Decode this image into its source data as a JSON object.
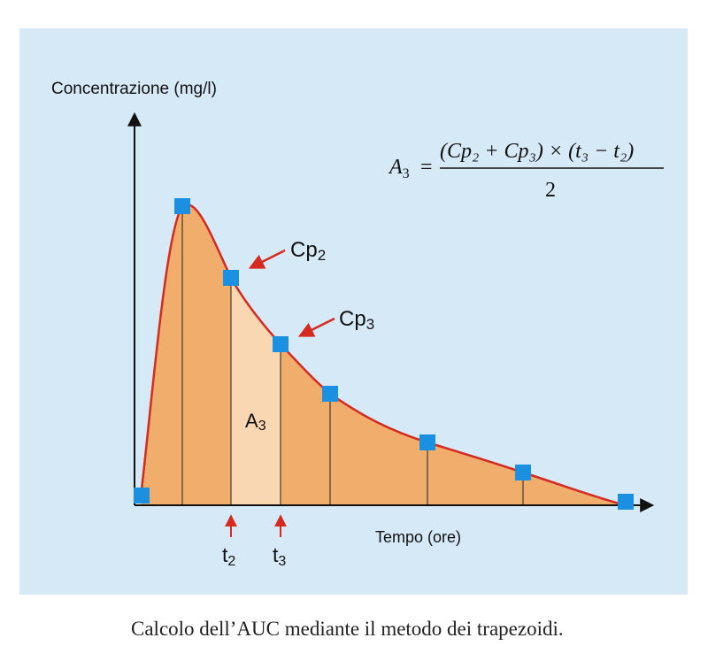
{
  "figure": {
    "y_axis_label": "Concentrazione (mg/l)",
    "x_axis_label": "Tempo (ore)",
    "formula": {
      "lhs": "A",
      "lhs_sub": "3",
      "equals": "=",
      "numerator": "(Cp₂ + Cp₃) × (t₃ − t₂)",
      "denominator": "2"
    },
    "labels": {
      "cp2": "Cp",
      "cp2_sub": "2",
      "cp3": "Cp",
      "cp3_sub": "3",
      "area": "A",
      "area_sub": "3",
      "t2": "t",
      "t2_sub": "2",
      "t3": "t",
      "t3_sub": "3"
    },
    "colors": {
      "background": "#d6e9f6",
      "area_fill": "#f0ad6c",
      "highlight_fill": "#f8d7b2",
      "curve": "#d42a1f",
      "marker": "#1b8fe0",
      "arrow": "#d42a1f"
    }
  },
  "caption": "Calcolo dell’AUC mediante il metodo dei trapezoidi."
}
